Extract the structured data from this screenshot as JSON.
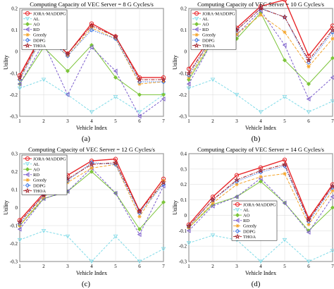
{
  "colors": {
    "JORA-MADDPG": "#e8262a",
    "AL": "#7fdbe8",
    "AO": "#7cc43a",
    "RD": "#7a5ccc",
    "Greedy": "#f4a52c",
    "DDPG": "#3f78e6",
    "THOA": "#a3232a"
  },
  "chart_data": [
    {
      "type": "line",
      "title": "Computing Capacity of VEC Server = 8 G Cycles/s",
      "xlabel": "Vehicle Index",
      "ylabel": "Utility",
      "caption": "(a)",
      "x": [
        1,
        2,
        3,
        4,
        5,
        6,
        7
      ],
      "xticks": [
        "1",
        "2",
        "3",
        "4",
        "5",
        "6",
        "7"
      ],
      "ylim": [
        -0.3,
        0.2
      ],
      "yticks": [
        "-0.3",
        "-0.2",
        "-0.1",
        "0",
        "0.1",
        "0.2"
      ],
      "grid": true,
      "legend_position": "top-left",
      "series": [
        {
          "name": "JORA-MADDPG",
          "values": [
            -0.11,
            0.095,
            -0.01,
            0.13,
            0.07,
            -0.12,
            -0.12
          ]
        },
        {
          "name": "AL",
          "values": [
            -0.17,
            -0.13,
            -0.2,
            -0.28,
            -0.21,
            -0.28,
            -0.2
          ]
        },
        {
          "name": "AO",
          "values": [
            -0.15,
            0.02,
            -0.09,
            0.03,
            -0.12,
            -0.2,
            -0.2
          ]
        },
        {
          "name": "RD",
          "values": [
            -0.15,
            0.04,
            -0.2,
            0.02,
            -0.09,
            -0.3,
            -0.22
          ]
        },
        {
          "name": "Greedy",
          "values": [
            -0.13,
            0.08,
            -0.02,
            0.11,
            0.06,
            -0.15,
            -0.14
          ]
        },
        {
          "name": "DDPG",
          "values": [
            -0.13,
            0.08,
            -0.02,
            0.1,
            0.06,
            -0.14,
            -0.14
          ]
        },
        {
          "name": "THOA",
          "values": [
            -0.12,
            0.09,
            -0.01,
            0.12,
            0.07,
            -0.13,
            -0.13
          ]
        }
      ]
    },
    {
      "type": "line",
      "title": "Computing Capacity of VEC Server = 10 G Cycles/s",
      "xlabel": "Vehicle Index",
      "ylabel": "Utility",
      "caption": "(b)",
      "x": [
        1,
        2,
        3,
        4,
        5,
        6,
        7
      ],
      "xticks": [
        "1",
        "2",
        "3",
        "4",
        "5",
        "6",
        "7"
      ],
      "ylim": [
        -0.3,
        0.2
      ],
      "yticks": [
        "-0.3",
        "-0.2",
        "-0.1",
        "0",
        "0.1",
        "0.2"
      ],
      "grid": true,
      "legend_position": "top-left",
      "series": [
        {
          "name": "JORA-MADDPG",
          "values": [
            -0.08,
            0.08,
            0.11,
            0.21,
            0.24,
            -0.02,
            0.12
          ]
        },
        {
          "name": "AL",
          "values": [
            -0.17,
            -0.13,
            -0.2,
            -0.28,
            -0.21,
            -0.28,
            -0.23
          ]
        },
        {
          "name": "AO",
          "values": [
            -0.13,
            0.05,
            0.06,
            0.18,
            -0.04,
            -0.15,
            -0.03
          ]
        },
        {
          "name": "RD",
          "values": [
            -0.15,
            0.05,
            0.08,
            0.19,
            0.03,
            -0.22,
            -0.12
          ]
        },
        {
          "name": "Greedy",
          "values": [
            -0.12,
            0.06,
            0.08,
            0.17,
            0.09,
            -0.07,
            0.06
          ]
        },
        {
          "name": "DDPG",
          "values": [
            -0.11,
            0.07,
            0.1,
            0.2,
            0.16,
            -0.05,
            0.09
          ]
        },
        {
          "name": "THOA",
          "values": [
            -0.1,
            0.07,
            0.1,
            0.2,
            0.16,
            -0.04,
            0.1
          ]
        }
      ]
    },
    {
      "type": "line",
      "title": "Computing Capacity of VEC Server = 12 G Cycles/s",
      "xlabel": "Vehicle Index",
      "ylabel": "Utility",
      "caption": "(c)",
      "x": [
        1,
        2,
        3,
        4,
        5,
        6,
        7
      ],
      "xticks": [
        "1",
        "2",
        "3",
        "4",
        "5",
        "6",
        "7"
      ],
      "ylim": [
        -0.3,
        0.3
      ],
      "yticks": [
        "-0.3",
        "-0.2",
        "-0.1",
        "0",
        "0.1",
        "0.2",
        "0.3"
      ],
      "grid": true,
      "legend_position": "top-left",
      "series": [
        {
          "name": "JORA-MADDPG",
          "values": [
            -0.07,
            0.08,
            0.18,
            0.26,
            0.27,
            -0.02,
            0.16
          ]
        },
        {
          "name": "AL",
          "values": [
            -0.18,
            -0.13,
            -0.16,
            -0.3,
            -0.16,
            -0.3,
            -0.23
          ]
        },
        {
          "name": "AO",
          "values": [
            -0.1,
            0.05,
            0.09,
            0.2,
            0.08,
            -0.12,
            0.03
          ]
        },
        {
          "name": "RD",
          "values": [
            -0.12,
            0.05,
            0.09,
            0.22,
            0.08,
            -0.15,
            0.12
          ]
        },
        {
          "name": "Greedy",
          "values": [
            -0.1,
            0.06,
            0.14,
            0.22,
            0.24,
            -0.05,
            0.15
          ]
        },
        {
          "name": "DDPG",
          "values": [
            -0.09,
            0.07,
            0.15,
            0.25,
            0.24,
            -0.03,
            0.13
          ]
        },
        {
          "name": "THOA",
          "values": [
            -0.08,
            0.07,
            0.16,
            0.24,
            0.25,
            -0.02,
            0.14
          ]
        }
      ]
    },
    {
      "type": "line",
      "title": "Computing Capacity of VEC Server = 14 G Cycles/s",
      "xlabel": "Vehicle Index",
      "ylabel": "Utility",
      "caption": "(d)",
      "x": [
        1,
        2,
        3,
        4,
        5,
        6,
        7
      ],
      "xticks": [
        "1",
        "2",
        "3",
        "4",
        "5",
        "6",
        "7"
      ],
      "ylim": [
        -0.3,
        0.4
      ],
      "yticks": [
        "-0.3",
        "-0.2",
        "-0.1",
        "0",
        "0.1",
        "0.2",
        "0.3",
        "0.4"
      ],
      "grid": true,
      "legend_position": "bottom-center",
      "series": [
        {
          "name": "JORA-MADDPG",
          "values": [
            -0.06,
            0.12,
            0.26,
            0.31,
            0.36,
            -0.02,
            0.2
          ]
        },
        {
          "name": "AL",
          "values": [
            -0.18,
            -0.13,
            -0.16,
            -0.3,
            -0.16,
            -0.3,
            -0.23
          ]
        },
        {
          "name": "AO",
          "values": [
            -0.08,
            0.07,
            0.12,
            0.22,
            0.08,
            -0.1,
            0.05
          ]
        },
        {
          "name": "RD",
          "values": [
            -0.1,
            0.06,
            0.12,
            0.24,
            0.08,
            -0.11,
            0.12
          ]
        },
        {
          "name": "Greedy",
          "values": [
            -0.08,
            0.08,
            0.2,
            0.25,
            0.27,
            -0.06,
            0.16
          ]
        },
        {
          "name": "DDPG",
          "values": [
            -0.07,
            0.1,
            0.22,
            0.28,
            0.32,
            -0.04,
            0.18
          ]
        },
        {
          "name": "THOA",
          "values": [
            -0.07,
            0.1,
            0.23,
            0.29,
            0.33,
            -0.03,
            0.19
          ]
        }
      ]
    }
  ]
}
